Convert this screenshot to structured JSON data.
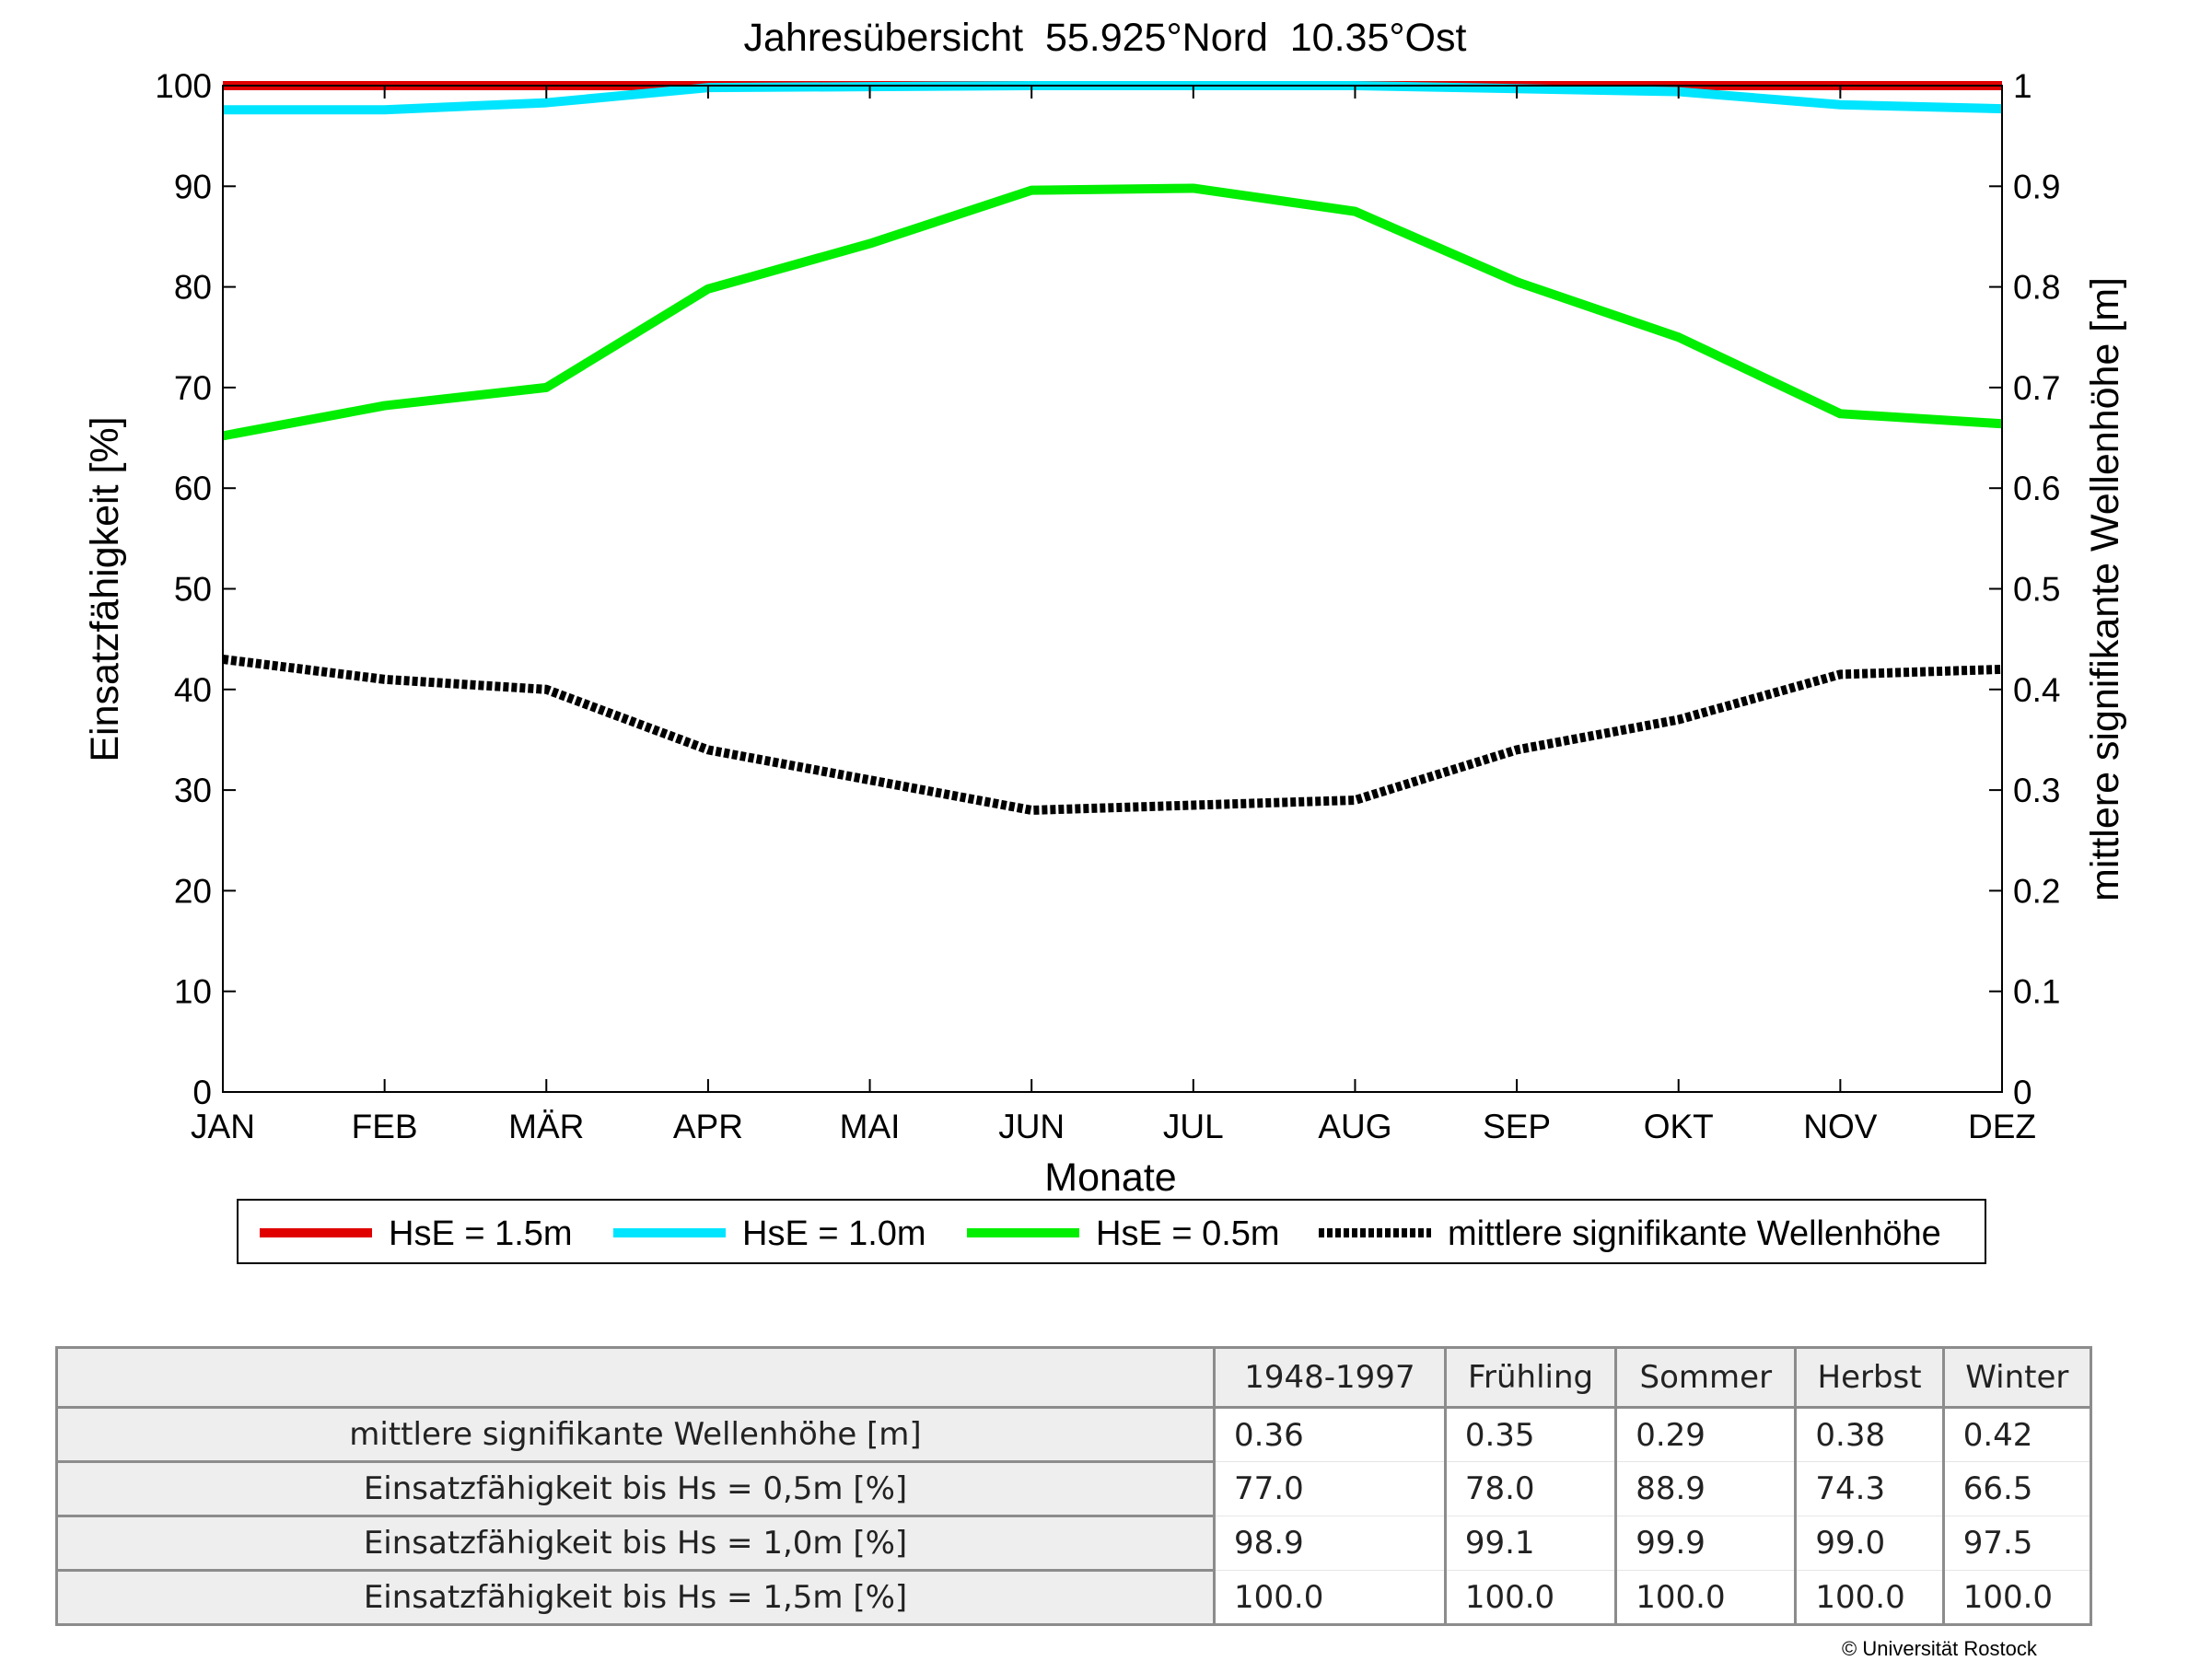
{
  "chart_data": {
    "type": "line",
    "title": "Jahresübersicht  55.925°Nord  10.35°Ost",
    "xlabel": "Monate",
    "ylabel": "Einsatzfähigkeit [%]",
    "y2label": "mittlere signifikante Wellenhöhe [m]",
    "categories": [
      "JAN",
      "FEB",
      "MÄR",
      "APR",
      "MAI",
      "JUN",
      "JUL",
      "AUG",
      "SEP",
      "OKT",
      "NOV",
      "DEZ"
    ],
    "ylim": [
      0,
      100
    ],
    "yticks": [
      "0",
      "10",
      "20",
      "30",
      "40",
      "50",
      "60",
      "70",
      "80",
      "90",
      "100"
    ],
    "y2lim": [
      0,
      1
    ],
    "y2ticks": [
      "0",
      "0.1",
      "0.2",
      "0.3",
      "0.4",
      "0.5",
      "0.6",
      "0.7",
      "0.8",
      "0.9",
      "1"
    ],
    "grid": false,
    "legend_position": "bottom",
    "series": [
      {
        "name": "HsE = 1.5m",
        "axis": "left",
        "color": "#e00000",
        "style": "solid",
        "values": [
          100,
          100,
          100,
          100,
          100,
          100,
          100,
          100,
          100,
          100,
          100,
          100
        ]
      },
      {
        "name": "HsE = 1.0m",
        "axis": "left",
        "color": "#00e5ff",
        "style": "solid",
        "values": [
          97.6,
          97.6,
          98.3,
          99.8,
          99.9,
          100,
          100,
          100,
          99.7,
          99.4,
          98.1,
          97.7
        ]
      },
      {
        "name": "HsE = 0.5m",
        "axis": "left",
        "color": "#00ee00",
        "style": "solid",
        "values": [
          65.2,
          68.2,
          70.0,
          79.8,
          84.3,
          89.6,
          89.8,
          87.5,
          80.5,
          75.0,
          67.4,
          66.4
        ]
      },
      {
        "name": "mittlere signifikante Wellenhöhe",
        "axis": "right",
        "color": "#000000",
        "style": "dotted",
        "values": [
          0.43,
          0.41,
          0.4,
          0.34,
          0.31,
          0.28,
          0.285,
          0.29,
          0.34,
          0.37,
          0.415,
          0.42
        ]
      }
    ]
  },
  "table": {
    "columns": [
      "1948-1997",
      "Frühling",
      "Sommer",
      "Herbst",
      "Winter"
    ],
    "rows": [
      {
        "label": "mittlere signifikante Wellenhöhe [m]",
        "values": [
          "0.36",
          "0.35",
          "0.29",
          "0.38",
          "0.42"
        ]
      },
      {
        "label": "Einsatzfähigkeit bis Hs = 0,5m [%]",
        "values": [
          "77.0",
          "78.0",
          "88.9",
          "74.3",
          "66.5"
        ]
      },
      {
        "label": "Einsatzfähigkeit bis Hs = 1,0m [%]",
        "values": [
          "98.9",
          "99.1",
          "99.9",
          "99.0",
          "97.5"
        ]
      },
      {
        "label": "Einsatzfähigkeit bis Hs = 1,5m [%]",
        "values": [
          "100.0",
          "100.0",
          "100.0",
          "100.0",
          "100.0"
        ]
      }
    ]
  },
  "footer": {
    "copyright": "© Universität Rostock"
  }
}
